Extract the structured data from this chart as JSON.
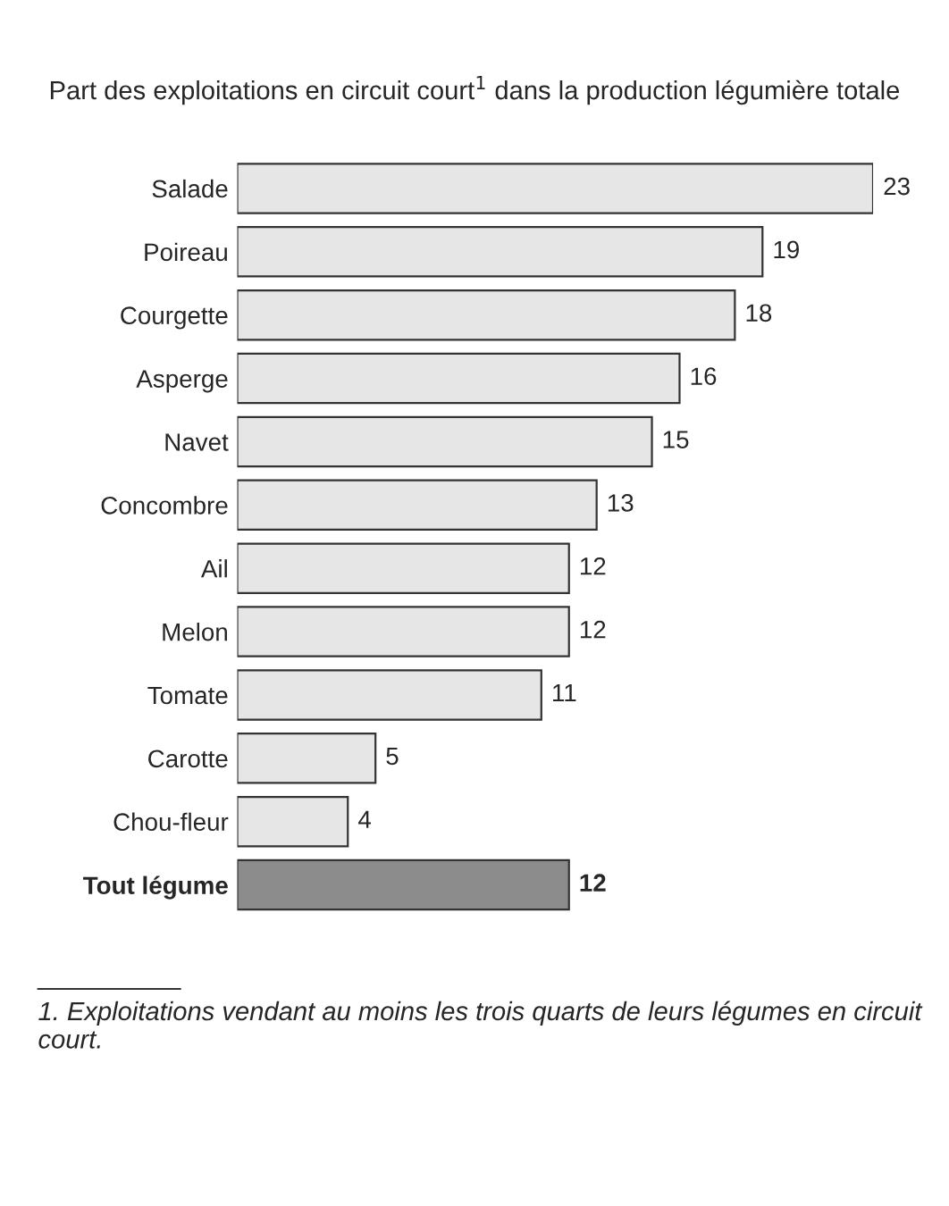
{
  "chart_data": {
    "type": "bar",
    "orientation": "horizontal",
    "title": "Part des exploitations en circuit court$^{1}$ dans la production légumière totale",
    "categories": [
      "Salade",
      "Poireau",
      "Courgette",
      "Asperge",
      "Navet",
      "Concombre",
      "Ail",
      "Melon",
      "Tomate",
      "Carotte",
      "Chou-fleur",
      "Tout légume"
    ],
    "values": [
      23,
      19,
      18,
      16,
      15,
      13,
      12,
      12,
      11,
      5,
      4,
      12
    ],
    "colors": [
      "#e6e6e6",
      "#e6e6e6",
      "#e6e6e6",
      "#e6e6e6",
      "#e6e6e6",
      "#e6e6e6",
      "#e6e6e6",
      "#e6e6e6",
      "#e6e6e6",
      "#e6e6e6",
      "#e6e6e6",
      "#8c8c8c"
    ],
    "data_labels": true,
    "annotations": [
      "1. Exploitations vendant au moins les trois quarts de leurs légumes en circuit court."
    ],
    "grid": false,
    "legend": false
  }
}
